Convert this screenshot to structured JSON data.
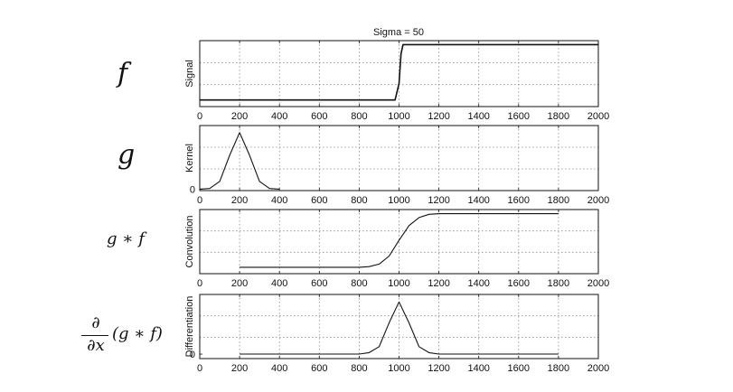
{
  "figure": {
    "title": "Sigma = 50",
    "row_labels": {
      "f": "f",
      "g": "g",
      "gf": "g ∗ f",
      "dfrac_num": "∂",
      "dfrac_den": "∂x",
      "dgf": "(g ∗ f)"
    }
  },
  "chart_data": [
    {
      "type": "line",
      "ylabel": "Signal",
      "xlim": [
        0,
        2000
      ],
      "ylim": [
        -1,
        1
      ],
      "xticks": [
        0,
        200,
        400,
        600,
        800,
        1000,
        1200,
        1400,
        1600,
        1800,
        2000
      ],
      "yticks": [],
      "grid": true,
      "series": [
        {
          "x": [
            0,
            200,
            400,
            600,
            800,
            980,
            1000,
            1010,
            1020,
            1200,
            1400,
            1600,
            1800,
            2000
          ],
          "y": [
            -0.8,
            -0.8,
            -0.8,
            -0.8,
            -0.8,
            -0.8,
            -0.3,
            0.6,
            0.88,
            0.88,
            0.88,
            0.88,
            0.88,
            0.88
          ]
        }
      ]
    },
    {
      "type": "line",
      "ylabel": "Kernel",
      "xlim": [
        0,
        2000
      ],
      "ylim": [
        -0.0002,
        0.009
      ],
      "xticks": [
        0,
        200,
        400,
        600,
        800,
        1000,
        1200,
        1400,
        1600,
        1800,
        2000
      ],
      "yticks": [
        {
          "value": 0,
          "label": "0"
        }
      ],
      "grid": true,
      "series": [
        {
          "x": [
            0,
            50,
            100,
            150,
            200,
            250,
            300,
            350,
            400
          ],
          "y": [
            0.0,
            0.0001,
            0.0011,
            0.0048,
            0.008,
            0.0048,
            0.0011,
            0.0001,
            0.0
          ]
        }
      ]
    },
    {
      "type": "line",
      "ylabel": "Convolution",
      "xlim": [
        0,
        2000
      ],
      "ylim": [
        -1,
        1
      ],
      "xticks": [
        0,
        200,
        400,
        600,
        800,
        1000,
        1200,
        1400,
        1600,
        1800,
        2000
      ],
      "yticks": [],
      "grid": true,
      "series": [
        {
          "x": [
            200,
            400,
            600,
            800,
            850,
            900,
            950,
            1000,
            1050,
            1100,
            1150,
            1200,
            1400,
            1600,
            1800
          ],
          "y": [
            -0.8,
            -0.8,
            -0.8,
            -0.8,
            -0.78,
            -0.7,
            -0.45,
            0.04,
            0.5,
            0.75,
            0.85,
            0.87,
            0.87,
            0.87,
            0.87
          ]
        }
      ]
    },
    {
      "type": "line",
      "ylabel": "Differentiation",
      "xlim": [
        0,
        2000
      ],
      "ylim": [
        -0.003,
        0.04
      ],
      "xticks": [
        0,
        200,
        400,
        600,
        800,
        1000,
        1200,
        1400,
        1600,
        1800,
        2000
      ],
      "yticks": [
        {
          "value": 0,
          "label": "0"
        }
      ],
      "grid": true,
      "series": [
        {
          "x": [
            200,
            400,
            600,
            800,
            850,
            900,
            950,
            1000,
            1050,
            1100,
            1150,
            1200,
            1400,
            1600,
            1800
          ],
          "y": [
            0,
            0,
            0,
            0,
            0.001,
            0.005,
            0.021,
            0.035,
            0.021,
            0.005,
            0.001,
            0,
            0,
            0,
            0
          ]
        }
      ]
    }
  ]
}
